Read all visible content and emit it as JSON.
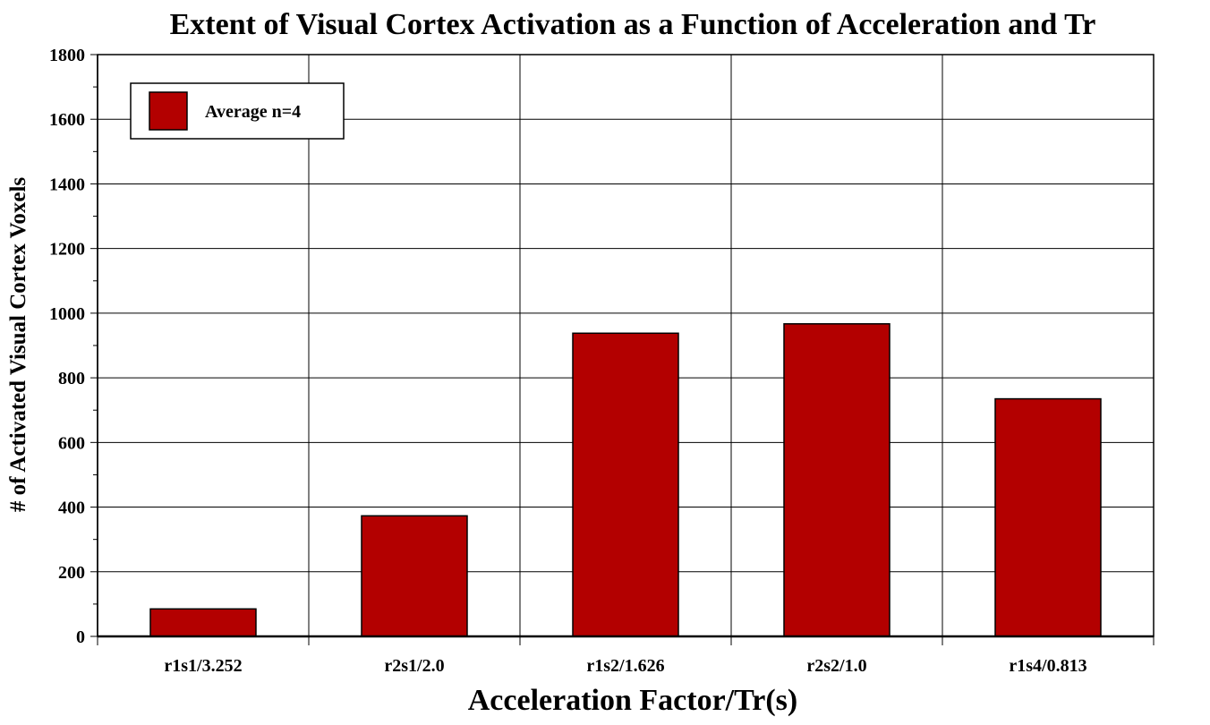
{
  "chart_data": {
    "type": "bar",
    "title": "Extent of Visual Cortex Activation as a Function of Acceleration and Tr",
    "xlabel": "Acceleration Factor/Tr(s)",
    "ylabel": "# of Activated Visual Cortex Voxels",
    "categories": [
      "r1s1/3.252",
      "r2s1/2.0",
      "r1s2/1.626",
      "r2s2/1.0",
      "r1s4/0.813"
    ],
    "series": [
      {
        "name": "Average n=4",
        "values": [
          85,
          373,
          938,
          967,
          735
        ],
        "color": "#b30000"
      }
    ],
    "ylim": [
      0,
      1800
    ],
    "yticks": [
      0,
      200,
      400,
      600,
      800,
      1000,
      1200,
      1400,
      1600,
      1800
    ],
    "grid": true,
    "legend_position": "top-left"
  }
}
